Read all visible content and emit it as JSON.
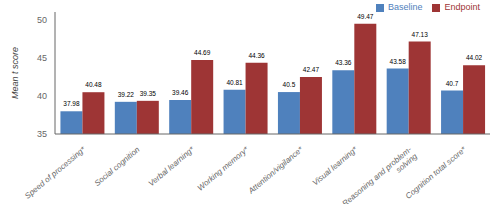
{
  "chart_data": {
    "type": "bar",
    "categories": [
      "Speed of processing*",
      "Social cognition",
      "Verbal learning*",
      "Working memory*",
      "Attention/vigilance*",
      "Visual learning*",
      "Reasoning and problem-\nsolving",
      "Cognition total score*"
    ],
    "series": [
      {
        "name": "Baseline",
        "color": "#4F81BD",
        "values": [
          37.98,
          39.22,
          39.46,
          40.81,
          40.5,
          43.36,
          43.58,
          40.7
        ]
      },
      {
        "name": "Endpoint",
        "color": "#9E3535",
        "values": [
          40.48,
          39.35,
          44.69,
          44.36,
          42.47,
          49.47,
          47.13,
          44.02
        ]
      }
    ],
    "ylabel": "Mean t score",
    "ylim": [
      35,
      51
    ],
    "yticks": [
      35,
      40,
      45,
      50
    ],
    "grid": false,
    "legend": "upper right",
    "data_labels": true
  }
}
